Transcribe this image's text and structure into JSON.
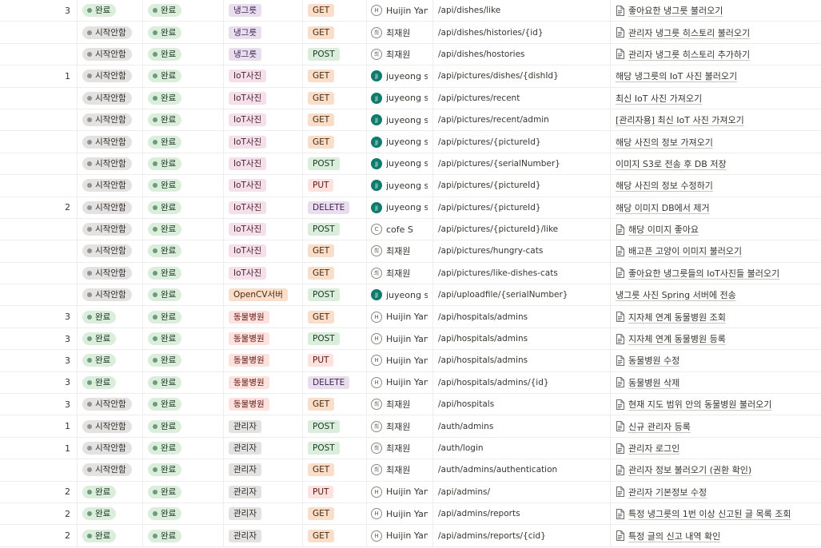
{
  "rows": [
    {
      "num": "3",
      "status": "완료",
      "status_kind": "done",
      "dev": "완료",
      "category": "냉그릇",
      "cat_kind": "fridge",
      "method": "GET",
      "assignee": "Huijin Yang",
      "avatar": "H",
      "avatar_kind": "outline",
      "path": "/api/dishes/like",
      "desc": "좋아요한 냉그릇 불러오기",
      "doc_icon": true
    },
    {
      "num": "",
      "status": "시작안함",
      "status_kind": "todo",
      "dev": "완료",
      "category": "냉그릇",
      "cat_kind": "fridge",
      "method": "GET",
      "assignee": "최재원",
      "avatar": "최",
      "avatar_kind": "outline",
      "path": "/api/dishes/histories/{id}",
      "desc": "관리자 냉그릇 히스토리 불러오기",
      "doc_icon": true
    },
    {
      "num": "",
      "status": "시작안함",
      "status_kind": "todo",
      "dev": "완료",
      "category": "냉그릇",
      "cat_kind": "fridge",
      "method": "POST",
      "assignee": "최재원",
      "avatar": "최",
      "avatar_kind": "outline",
      "path": "/api/dishes/hostories",
      "desc": "관리자 냉그릇 히스토리 추가하기",
      "doc_icon": true
    },
    {
      "num": "1",
      "status": "시작안함",
      "status_kind": "todo",
      "dev": "완료",
      "category": "IoT사진",
      "cat_kind": "iot",
      "method": "GET",
      "assignee": "juyeong so",
      "avatar": "JJ",
      "avatar_kind": "green",
      "path": "/api/pictures/dishes/{dishId}",
      "desc": "해당 냉그릇의 IoT 사진 불러오기",
      "doc_icon": false
    },
    {
      "num": "",
      "status": "시작안함",
      "status_kind": "todo",
      "dev": "완료",
      "category": "IoT사진",
      "cat_kind": "iot",
      "method": "GET",
      "assignee": "juyeong so",
      "avatar": "JJ",
      "avatar_kind": "green",
      "path": "/api/pictures/recent",
      "desc": "최신 IoT 사진 가져오기",
      "doc_icon": false
    },
    {
      "num": "",
      "status": "시작안함",
      "status_kind": "todo",
      "dev": "완료",
      "category": "IoT사진",
      "cat_kind": "iot",
      "method": "GET",
      "assignee": "juyeong so",
      "avatar": "JJ",
      "avatar_kind": "green",
      "path": "/api/pictures/recent/admin",
      "desc": "[관리자용] 최신 IoT 사진 가져오기",
      "doc_icon": false
    },
    {
      "num": "",
      "status": "시작안함",
      "status_kind": "todo",
      "dev": "완료",
      "category": "IoT사진",
      "cat_kind": "iot",
      "method": "GET",
      "assignee": "juyeong so",
      "avatar": "JJ",
      "avatar_kind": "green",
      "path": "/api/pictures/{pictureId}",
      "desc": "해당 사진의 정보 가져오기",
      "doc_icon": false
    },
    {
      "num": "",
      "status": "시작안함",
      "status_kind": "todo",
      "dev": "완료",
      "category": "IoT사진",
      "cat_kind": "iot",
      "method": "POST",
      "assignee": "juyeong so",
      "avatar": "JJ",
      "avatar_kind": "green",
      "path": "/api/pictures/{serialNumber}",
      "desc": "이미지 S3로 전송 후 DB 저장",
      "doc_icon": false
    },
    {
      "num": "",
      "status": "시작안함",
      "status_kind": "todo",
      "dev": "완료",
      "category": "IoT사진",
      "cat_kind": "iot",
      "method": "PUT",
      "assignee": "juyeong so",
      "avatar": "JJ",
      "avatar_kind": "green",
      "path": "/api/pictures/{pictureId}",
      "desc": "해당 사진의 정보 수정하기",
      "doc_icon": false
    },
    {
      "num": "2",
      "status": "시작안함",
      "status_kind": "todo",
      "dev": "완료",
      "category": "IoT사진",
      "cat_kind": "iot",
      "method": "DELETE",
      "assignee": "juyeong so",
      "avatar": "JJ",
      "avatar_kind": "green",
      "path": "/api/pictures/{pictureId}",
      "desc": "해당 이미지 DB에서 제거",
      "doc_icon": false
    },
    {
      "num": "",
      "status": "시작안함",
      "status_kind": "todo",
      "dev": "완료",
      "category": "IoT사진",
      "cat_kind": "iot",
      "method": "POST",
      "assignee": "cofe S",
      "avatar": "C",
      "avatar_kind": "outline",
      "path": "/api/pictures/{pictureId}/like",
      "desc": "해당 이미지 좋아요",
      "doc_icon": true
    },
    {
      "num": "",
      "status": "시작안함",
      "status_kind": "todo",
      "dev": "완료",
      "category": "IoT사진",
      "cat_kind": "iot",
      "method": "GET",
      "assignee": "최재원",
      "avatar": "최",
      "avatar_kind": "outline",
      "path": "/api/pictures/hungry-cats",
      "desc": "배고픈 고양이 이미지 불러오기",
      "doc_icon": true
    },
    {
      "num": "",
      "status": "시작안함",
      "status_kind": "todo",
      "dev": "완료",
      "category": "IoT사진",
      "cat_kind": "iot",
      "method": "GET",
      "assignee": "최재원",
      "avatar": "최",
      "avatar_kind": "outline",
      "path": "/api/pictures/like-dishes-cats",
      "desc": "좋아요한 냉그릇들의 IoT사진들 불러오기",
      "doc_icon": true
    },
    {
      "num": "",
      "status": "시작안함",
      "status_kind": "todo",
      "dev": "완료",
      "category": "OpenCV서버",
      "cat_kind": "cv",
      "method": "POST",
      "assignee": "juyeong so",
      "avatar": "JJ",
      "avatar_kind": "green",
      "path": "/api/uploadfile/{serialNumber}",
      "desc": "냉그릇 사진 Spring 서버에 전송",
      "doc_icon": false
    },
    {
      "num": "3",
      "status": "완료",
      "status_kind": "done",
      "dev": "완료",
      "category": "동물병원",
      "cat_kind": "hosp",
      "method": "GET",
      "assignee": "Huijin Yang",
      "avatar": "H",
      "avatar_kind": "outline",
      "path": "/api/hospitals/admins",
      "desc": "지자체 연계 동물병원 조회",
      "doc_icon": true
    },
    {
      "num": "3",
      "status": "완료",
      "status_kind": "done",
      "dev": "완료",
      "category": "동물병원",
      "cat_kind": "hosp",
      "method": "POST",
      "assignee": "Huijin Yang",
      "avatar": "H",
      "avatar_kind": "outline",
      "path": "/api/hospitals/admins",
      "desc": "지자체 연계 동물병원 등록",
      "doc_icon": true
    },
    {
      "num": "3",
      "status": "완료",
      "status_kind": "done",
      "dev": "완료",
      "category": "동물병원",
      "cat_kind": "hosp",
      "method": "PUT",
      "assignee": "Huijin Yang",
      "avatar": "H",
      "avatar_kind": "outline",
      "path": "/api/hospitals/admins",
      "desc": "동물병원 수정",
      "doc_icon": true
    },
    {
      "num": "3",
      "status": "완료",
      "status_kind": "done",
      "dev": "완료",
      "category": "동물병원",
      "cat_kind": "hosp",
      "method": "DELETE",
      "assignee": "Huijin Yang",
      "avatar": "H",
      "avatar_kind": "outline",
      "path": "/api/hospitals/admins/{id}",
      "desc": "동물병원 삭제",
      "doc_icon": true
    },
    {
      "num": "3",
      "status": "시작안함",
      "status_kind": "todo",
      "dev": "완료",
      "category": "동물병원",
      "cat_kind": "hosp",
      "method": "GET",
      "assignee": "최재원",
      "avatar": "최",
      "avatar_kind": "outline",
      "path": "/api/hospitals",
      "desc": "현재 지도 범위 안의 동물병원 불러오기",
      "doc_icon": true
    },
    {
      "num": "1",
      "status": "시작안함",
      "status_kind": "todo",
      "dev": "완료",
      "category": "관리자",
      "cat_kind": "admin",
      "method": "POST",
      "assignee": "최재원",
      "avatar": "최",
      "avatar_kind": "outline",
      "path": "/auth/admins",
      "desc": "신규 관리자 등록",
      "doc_icon": true
    },
    {
      "num": "1",
      "status": "시작안함",
      "status_kind": "todo",
      "dev": "완료",
      "category": "관리자",
      "cat_kind": "admin",
      "method": "POST",
      "assignee": "최재원",
      "avatar": "최",
      "avatar_kind": "outline",
      "path": "/auth/login",
      "desc": "관리자 로그인",
      "doc_icon": true
    },
    {
      "num": "",
      "status": "시작안함",
      "status_kind": "todo",
      "dev": "완료",
      "category": "관리자",
      "cat_kind": "admin",
      "method": "GET",
      "assignee": "최재원",
      "avatar": "최",
      "avatar_kind": "outline",
      "path": "/auth/admins/authentication",
      "desc": "관리자 정보 불러오기 (권환 확인)",
      "doc_icon": true
    },
    {
      "num": "2",
      "status": "완료",
      "status_kind": "done",
      "dev": "완료",
      "category": "관리자",
      "cat_kind": "admin",
      "method": "PUT",
      "assignee": "Huijin Yang",
      "avatar": "H",
      "avatar_kind": "outline",
      "path": "/api/admins/",
      "desc": "관리자 기본정보 수정",
      "doc_icon": true
    },
    {
      "num": "2",
      "status": "완료",
      "status_kind": "done",
      "dev": "완료",
      "category": "관리자",
      "cat_kind": "admin",
      "method": "GET",
      "assignee": "Huijin Yang",
      "avatar": "H",
      "avatar_kind": "outline",
      "path": "/api/admins/reports",
      "desc": "특정 냉그릇의 1번 이상 신고된 글 목록 조회",
      "doc_icon": true
    },
    {
      "num": "2",
      "status": "완료",
      "status_kind": "done",
      "dev": "완료",
      "category": "관리자",
      "cat_kind": "admin",
      "method": "GET",
      "assignee": "Huijin Yang",
      "avatar": "H",
      "avatar_kind": "outline",
      "path": "/api/admins/reports/{cid}",
      "desc": "특정 글의 신고 내역 확인",
      "doc_icon": true
    }
  ]
}
